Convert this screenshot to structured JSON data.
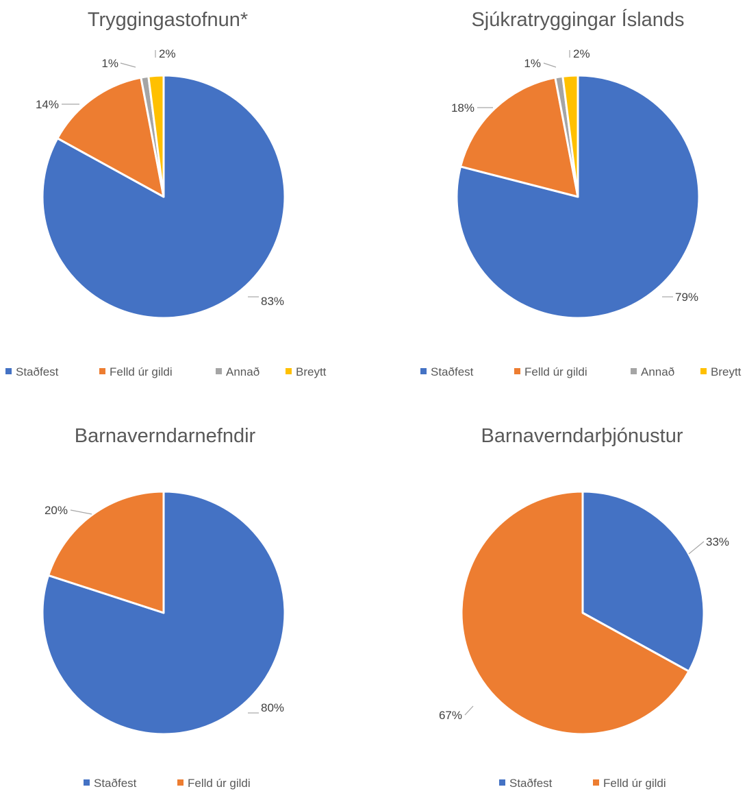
{
  "colors": {
    "Staðfest": "#4472C4",
    "Felld úr gildi": "#ED7D31",
    "Annað": "#A5A5A5",
    "Breytt": "#FFC000",
    "leader": "#A6A6A6"
  },
  "chart_data": [
    {
      "type": "pie",
      "title": "Tryggingastofnun*",
      "categories": [
        "Staðfest",
        "Felld úr gildi",
        "Annað",
        "Breytt"
      ],
      "values": [
        83,
        14,
        1,
        2
      ],
      "labels": [
        "83%",
        "14%",
        "1%",
        "2%"
      ],
      "legend": [
        "Staðfest",
        "Felld úr gildi",
        "Annað",
        "Breytt"
      ],
      "legend_position": "bottom"
    },
    {
      "type": "pie",
      "title": "Sjúkratryggingar Íslands",
      "categories": [
        "Staðfest",
        "Felld úr gildi",
        "Annað",
        "Breytt"
      ],
      "values": [
        79,
        18,
        1,
        2
      ],
      "labels": [
        "79%",
        "18%",
        "1%",
        "2%"
      ],
      "legend": [
        "Staðfest",
        "Felld úr gildi",
        "Annað",
        "Breytt"
      ],
      "legend_position": "bottom"
    },
    {
      "type": "pie",
      "title": "Barnaverndarnefndir",
      "categories": [
        "Staðfest",
        "Felld úr gildi"
      ],
      "values": [
        80,
        20
      ],
      "labels": [
        "80%",
        "20%"
      ],
      "legend": [
        "Staðfest",
        "Felld úr gildi"
      ],
      "legend_position": "bottom"
    },
    {
      "type": "pie",
      "title": "Barnaverndarþjónustur",
      "categories": [
        "Staðfest",
        "Felld úr gildi"
      ],
      "values": [
        33,
        67
      ],
      "labels": [
        "33%",
        "67%"
      ],
      "legend": [
        "Staðfest",
        "Felld úr gildi"
      ],
      "legend_position": "bottom"
    }
  ]
}
